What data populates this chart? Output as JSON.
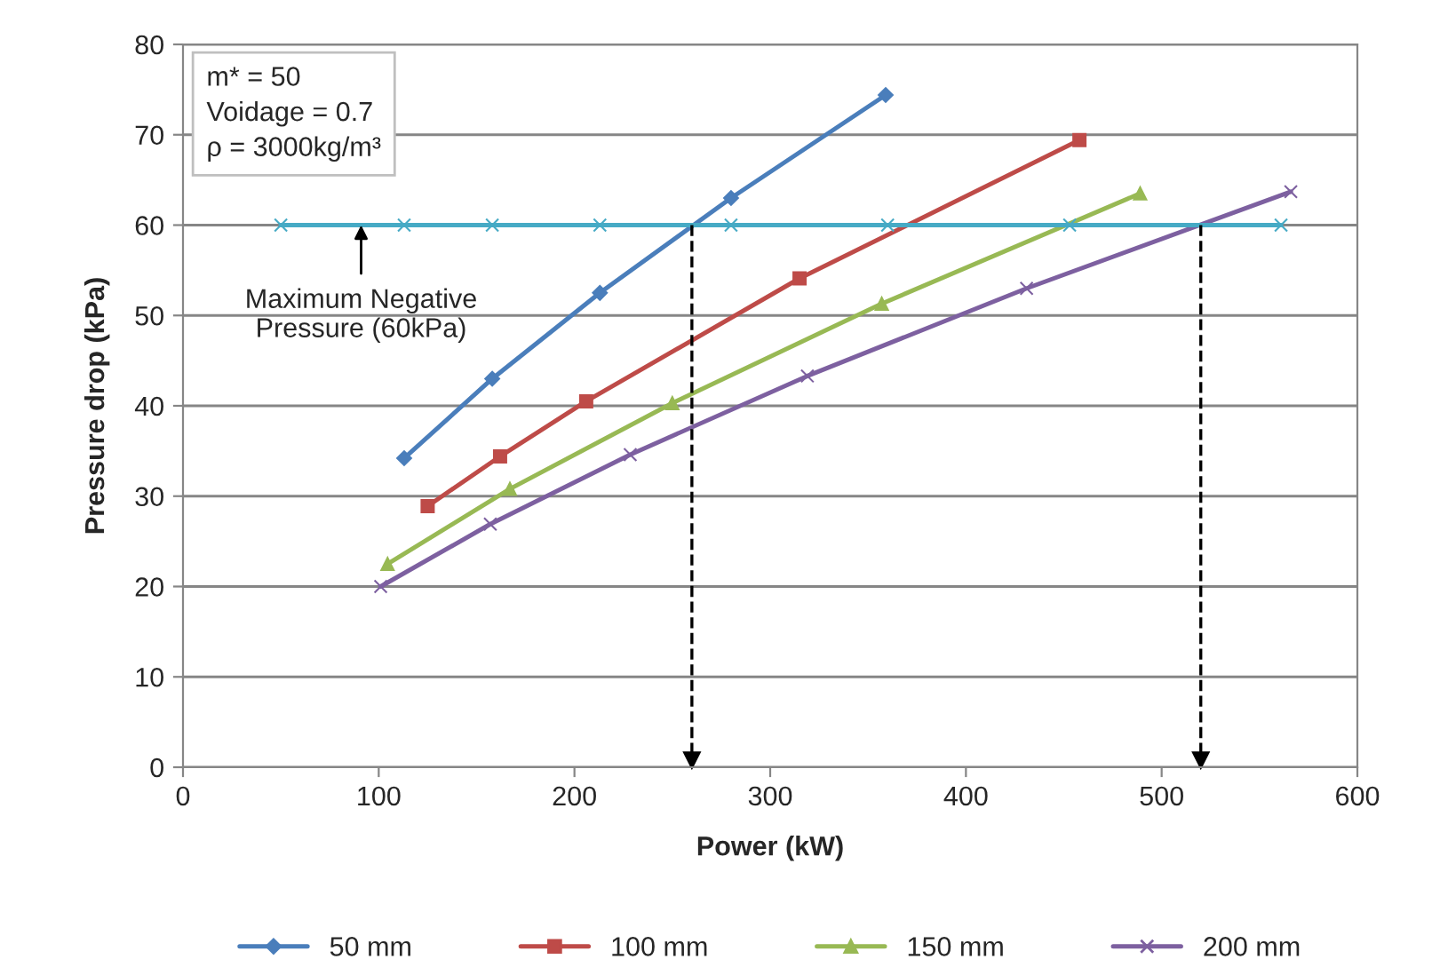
{
  "chart_data": {
    "type": "line",
    "xlabel": "Power (kW)",
    "ylabel": "Pressure drop (kPa)",
    "xlim": [
      0,
      600
    ],
    "xticks": [
      0,
      100,
      200,
      300,
      400,
      500,
      600
    ],
    "ylim": [
      0,
      80
    ],
    "yticks": [
      0,
      10,
      20,
      30,
      40,
      50,
      60,
      70,
      80
    ],
    "grid": "y",
    "legend": "bottom",
    "line_style": "solid",
    "series": [
      {
        "name": "50 mm",
        "color": "#4a7ebb",
        "marker": "diamond",
        "x": [
          113,
          158,
          213,
          280,
          359
        ],
        "values": [
          34.2,
          43,
          52.5,
          63,
          74.4
        ]
      },
      {
        "name": "100 mm",
        "color": "#be4b48",
        "marker": "square",
        "x": [
          125,
          162,
          206,
          315,
          458
        ],
        "values": [
          28.9,
          34.4,
          40.5,
          54.1,
          69.4
        ]
      },
      {
        "name": "150 mm",
        "color": "#98b954",
        "marker": "triangle",
        "x": [
          104.5,
          167,
          250,
          357,
          489
        ],
        "values": [
          22.5,
          30.8,
          40.3,
          51.3,
          63.5
        ]
      },
      {
        "name": "200 mm",
        "color": "#7d60a0",
        "marker": "cross",
        "x": [
          101,
          157,
          228.5,
          319,
          431,
          566
        ],
        "values": [
          20,
          26.9,
          34.6,
          43.3,
          53,
          63.7
        ]
      },
      {
        "color": "#46aac5",
        "marker": "cross",
        "x": [
          50,
          113,
          158,
          213,
          280,
          360,
          453,
          561
        ],
        "values": [
          60,
          60,
          60,
          60,
          60,
          60,
          60,
          60
        ]
      }
    ],
    "ref_lines": [
      {
        "axis": "x",
        "value": 260,
        "color": "#000000",
        "line_style": "dashed"
      },
      {
        "axis": "x",
        "value": 520,
        "color": "#000000",
        "line_style": "dashed"
      }
    ],
    "annotations": [
      "m* = 50\nVoidage = 0.7\nρ = 3000kg/m³",
      {
        "text": "Maximum Negative\nPressure (60kPa)",
        "x": 91,
        "y": 60
      }
    ]
  }
}
